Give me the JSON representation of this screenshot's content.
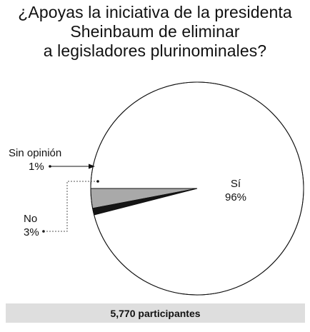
{
  "title_lines": [
    "¿Apoyas la iniciativa de la presidenta",
    "Sheinbaum de eliminar",
    "a legisladores plurinominales?"
  ],
  "chart_data": {
    "type": "pie",
    "title": "¿Apoyas la iniciativa de la presidenta Sheinbaum de eliminar a legisladores plurinominales?",
    "slices": [
      {
        "label": "Sí",
        "value_label": "96%",
        "value": 96,
        "color": "#ffffff"
      },
      {
        "label": "No",
        "value_label": "3%",
        "value": 3,
        "color": "#a9a9a9"
      },
      {
        "label": "Sin opinión",
        "value_label": "1%",
        "value": 1,
        "color": "#151515"
      }
    ]
  },
  "footer": {
    "participants": "5,770 participantes"
  }
}
